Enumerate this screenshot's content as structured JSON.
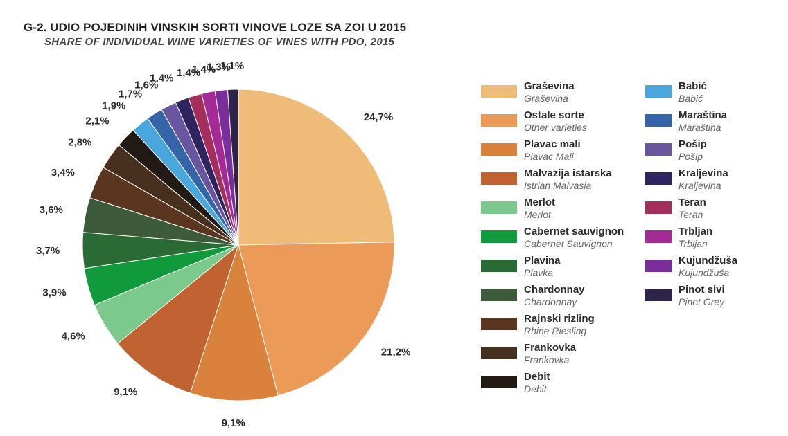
{
  "chart_data": {
    "type": "pie",
    "title": "G-2. UDIO POJEDINIH VINSKIH SORTI VINOVE LOZE SA ZOI U 2015",
    "subtitle": "SHARE OF INDIVIDUAL WINE VARIETIES OF VINES WITH PDO, 2015",
    "slices": [
      {
        "name": "Graševina",
        "name_en": "Graševina",
        "value": 24.7,
        "label": "24,7%",
        "color": "#eebc78"
      },
      {
        "name": "Ostale sorte",
        "name_en": "Other varieties",
        "value": 21.2,
        "label": "21,2%",
        "color": "#ec9a58"
      },
      {
        "name": "Plavac mali",
        "name_en": "Plavac Mali",
        "value": 9.1,
        "label": "9,1%",
        "color": "#d9823c"
      },
      {
        "name": "Malvazija istarska",
        "name_en": "Istrian Malvasia",
        "value": 9.1,
        "label": "9,1%",
        "color": "#c06330"
      },
      {
        "name": "Merlot",
        "name_en": "Merlot",
        "value": 4.6,
        "label": "4,6%",
        "color": "#7cc98e"
      },
      {
        "name": "Cabernet sauvignon",
        "name_en": "Cabernet Sauvignon",
        "value": 3.9,
        "label": "3,9%",
        "color": "#109a3c"
      },
      {
        "name": "Plavina",
        "name_en": "Plavka",
        "value": 3.7,
        "label": "3,7%",
        "color": "#2a6a35"
      },
      {
        "name": "Chardonnay",
        "name_en": "Chardonnay",
        "value": 3.6,
        "label": "3,6%",
        "color": "#3d5a3a"
      },
      {
        "name": "Rajnski rizling",
        "name_en": "Rhine Riesling",
        "value": 3.4,
        "label": "3,4%",
        "color": "#5a3620"
      },
      {
        "name": "Frankovka",
        "name_en": "Frankovka",
        "value": 2.8,
        "label": "2,8%",
        "color": "#48301f"
      },
      {
        "name": "Debit",
        "name_en": "Debit",
        "value": 2.1,
        "label": "2,1%",
        "color": "#221a14"
      },
      {
        "name": "Babić",
        "name_en": "Babić",
        "value": 1.9,
        "label": "1,9%",
        "color": "#49a7dd"
      },
      {
        "name": "Maraština",
        "name_en": "Maraština",
        "value": 1.7,
        "label": "1,7%",
        "color": "#3565a8"
      },
      {
        "name": "Pošip",
        "name_en": "Pošip",
        "value": 1.6,
        "label": "1,6%",
        "color": "#6a559f"
      },
      {
        "name": "Kraljevina",
        "name_en": "Kraljevina",
        "value": 1.4,
        "label": "1,4%",
        "color": "#2f2460"
      },
      {
        "name": "Teran",
        "name_en": "Teran",
        "value": 1.4,
        "label": "1,4%",
        "color": "#a42f5c"
      },
      {
        "name": "Trbljan",
        "name_en": "Trbljan",
        "value": 1.4,
        "label": "1,4%",
        "color": "#a52a96"
      },
      {
        "name": "Kujundžuša",
        "name_en": "Kujundžuša",
        "value": 1.3,
        "label": "1,3%",
        "color": "#7a2e9b"
      },
      {
        "name": "Pinot  sivi",
        "name_en": "Pinot Grey",
        "value": 1.1,
        "label": "1,1%",
        "color": "#2e2348"
      }
    ]
  }
}
